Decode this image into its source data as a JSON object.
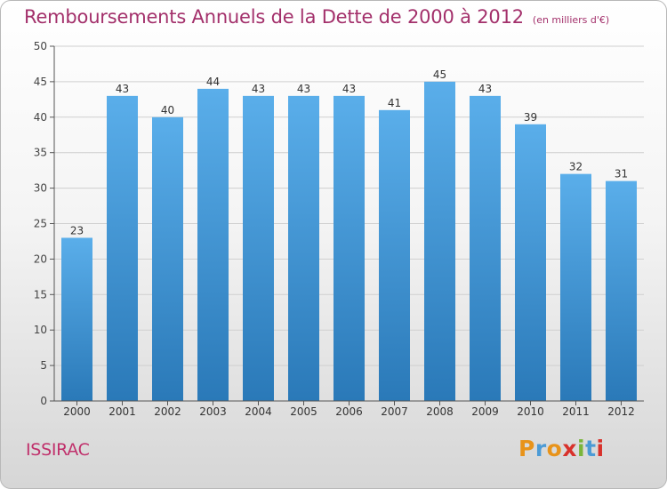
{
  "header": {
    "title": "Remboursements Annuels de la Dette de 2000 à 2012",
    "unit": "(en milliers d'€)"
  },
  "footer": {
    "commune": "ISSIRAC",
    "logo": "Proxiti",
    "logo_colors": [
      "#e8931a",
      "#4c9bd6",
      "#e8931a",
      "#d8312b",
      "#7ab53a",
      "#4c9bd6",
      "#d8312b"
    ]
  },
  "chart_data": {
    "type": "bar",
    "title": "Remboursements Annuels de la Dette de 2000 à 2012",
    "ylabel": "en milliers d'€",
    "categories": [
      "2000",
      "2001",
      "2002",
      "2003",
      "2004",
      "2005",
      "2006",
      "2007",
      "2008",
      "2009",
      "2010",
      "2011",
      "2012"
    ],
    "values": [
      23,
      43,
      40,
      44,
      43,
      43,
      43,
      41,
      45,
      43,
      39,
      32,
      31
    ],
    "ylim": [
      0,
      50
    ],
    "yticks": [
      0,
      5,
      10,
      15,
      20,
      25,
      30,
      35,
      40,
      45,
      50
    ],
    "bar_color_light": "#5aaeea",
    "bar_color_dark": "#2a79b8",
    "gridlines": true
  }
}
